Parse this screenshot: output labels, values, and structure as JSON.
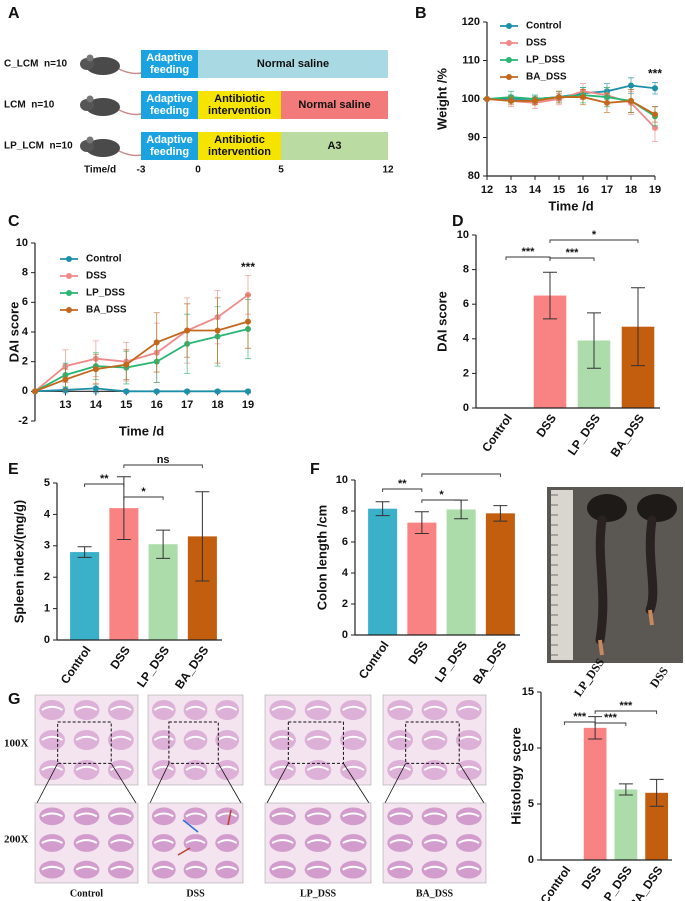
{
  "panel_labels": [
    "A",
    "B",
    "C",
    "D",
    "E",
    "F",
    "G"
  ],
  "timeline": {
    "axis_label": "Time/d",
    "ticks": [
      "-3",
      "0",
      "5",
      "12"
    ],
    "rows": [
      {
        "label": "C_LCM  n=10",
        "segments": [
          {
            "text": "Adaptive feeding",
            "color": "#1aa3e0"
          },
          {
            "text": "Normal saline",
            "color": "#a9d9e2"
          }
        ]
      },
      {
        "label": "LCM  n=10",
        "segments": [
          {
            "text": "Adaptive feeding",
            "color": "#1aa3e0"
          },
          {
            "text": "Antibiotic intervention",
            "color": "#f5e400"
          },
          {
            "text": "Normal saline",
            "color": "#f27a7a"
          }
        ]
      },
      {
        "label": "LP_LCM  n=10",
        "segments": [
          {
            "text": "Adaptive feeding",
            "color": "#1aa3e0"
          },
          {
            "text": "Antibiotic intervention",
            "color": "#f5e400"
          },
          {
            "text": "A3",
            "color": "#badca2"
          }
        ]
      }
    ]
  },
  "chart_data": [
    {
      "type": "line",
      "y_label": "Weight /%",
      "x_label": "Time /d",
      "x": [
        12,
        13,
        14,
        15,
        16,
        17,
        18,
        19
      ],
      "xlim": [
        12,
        19
      ],
      "xticks": [
        12,
        13,
        14,
        15,
        16,
        17,
        18,
        19
      ],
      "ylim": [
        80,
        120
      ],
      "yticks": [
        80,
        90,
        100,
        110,
        120
      ],
      "annotation": "***",
      "series": [
        {
          "name": "Control",
          "color": "#1e8fa8",
          "values": [
            100,
            100,
            100,
            100.5,
            101.5,
            102,
            103.5,
            102.8
          ],
          "errors": [
            0,
            1,
            1,
            1,
            1.5,
            2,
            2,
            1.5
          ]
        },
        {
          "name": "DSS",
          "color": "#f08a8a",
          "values": [
            100,
            99.5,
            99,
            100,
            102,
            101,
            99,
            92.5
          ],
          "errors": [
            0,
            1.5,
            1.5,
            1.5,
            2,
            2,
            3,
            3.5
          ]
        },
        {
          "name": "LP_DSS",
          "color": "#2ab573",
          "values": [
            100,
            100.5,
            100,
            100.5,
            101,
            100.5,
            99.5,
            95.5
          ],
          "errors": [
            0,
            1.5,
            1,
            1.5,
            2,
            2.5,
            3,
            2.5
          ]
        },
        {
          "name": "BA_DSS",
          "color": "#c2681d",
          "values": [
            100,
            99.5,
            99.5,
            100.5,
            100.5,
            99,
            99.5,
            96
          ],
          "errors": [
            0,
            1,
            1,
            1.5,
            2,
            2.5,
            3,
            2
          ]
        }
      ]
    },
    {
      "type": "line",
      "y_label": "DAI score",
      "x_label": "Time /d",
      "x": [
        12,
        13,
        14,
        15,
        16,
        17,
        18,
        19
      ],
      "xlim": [
        12,
        19
      ],
      "xticks": [
        13,
        14,
        15,
        16,
        17,
        18,
        19
      ],
      "ylim": [
        -2,
        10
      ],
      "yticks": [
        -2,
        0,
        2,
        4,
        6,
        8,
        10
      ],
      "annotation": "***",
      "series": [
        {
          "name": "Control",
          "color": "#1e8fa8",
          "values": [
            0,
            0.1,
            0.2,
            0,
            0,
            0,
            0,
            0
          ],
          "errors": [
            0,
            0.2,
            0.3,
            0.1,
            0.1,
            0.1,
            0.1,
            0.1
          ]
        },
        {
          "name": "DSS",
          "color": "#f08a8a",
          "values": [
            0,
            1.7,
            2.2,
            2.0,
            2.6,
            4.1,
            5.0,
            6.5
          ],
          "errors": [
            0,
            1.1,
            1.2,
            1.3,
            2.0,
            2.2,
            1.8,
            1.3
          ]
        },
        {
          "name": "LP_DSS",
          "color": "#2ab573",
          "values": [
            0,
            1.1,
            1.7,
            1.6,
            2.0,
            3.2,
            3.7,
            4.2
          ],
          "errors": [
            0,
            0.8,
            0.9,
            1.1,
            1.4,
            2.0,
            2.0,
            2.0
          ]
        },
        {
          "name": "BA_DSS",
          "color": "#c2681d",
          "values": [
            0,
            0.8,
            1.5,
            1.8,
            3.3,
            4.1,
            4.1,
            4.7
          ],
          "errors": [
            0,
            0.7,
            1.0,
            1.0,
            2.0,
            1.8,
            2.2,
            1.8
          ]
        }
      ]
    },
    {
      "type": "bar",
      "y_label": "DAI score",
      "categories": [
        "Control",
        "DSS",
        "LP_DSS",
        "BA_DSS"
      ],
      "values": [
        0,
        6.5,
        3.9,
        4.7
      ],
      "errors": [
        0,
        1.35,
        1.6,
        2.25
      ],
      "colors": [
        "#3ab0c9",
        "#f98282",
        "#abdcaa",
        "#c35e0e"
      ],
      "ylim": [
        0,
        10
      ],
      "yticks": [
        0,
        2,
        4,
        6,
        8,
        10
      ],
      "comparisons": [
        {
          "from": 0,
          "to": 1,
          "label": "***"
        },
        {
          "from": 1,
          "to": 2,
          "label": "***"
        },
        {
          "from": 1,
          "to": 3,
          "label": "*"
        }
      ]
    },
    {
      "type": "bar",
      "y_label": "Spleen index/(mg/g)",
      "categories": [
        "Control",
        "DSS",
        "LP_DSS",
        "BA_DSS"
      ],
      "values": [
        2.8,
        4.2,
        3.05,
        3.3
      ],
      "errors": [
        0.17,
        1.0,
        0.45,
        1.42
      ],
      "colors": [
        "#3ab0c9",
        "#f98282",
        "#abdcaa",
        "#c35e0e"
      ],
      "ylim": [
        0,
        5
      ],
      "yticks": [
        0,
        1,
        2,
        3,
        4,
        5
      ],
      "comparisons": [
        {
          "from": 0,
          "to": 1,
          "label": "**"
        },
        {
          "from": 1,
          "to": 2,
          "label": "*"
        },
        {
          "from": 1,
          "to": 3,
          "label": "ns"
        }
      ]
    },
    {
      "type": "bar",
      "y_label": "Colon length /cm",
      "categories": [
        "Control",
        "DSS",
        "LP_DSS",
        "BA_DSS"
      ],
      "values": [
        8.15,
        7.25,
        8.1,
        7.85
      ],
      "errors": [
        0.45,
        0.7,
        0.6,
        0.5
      ],
      "colors": [
        "#3ab0c9",
        "#f98282",
        "#abdcaa",
        "#c35e0e"
      ],
      "ylim": [
        0,
        10
      ],
      "yticks": [
        0,
        2,
        4,
        6,
        8,
        10
      ],
      "comparisons": [
        {
          "from": 0,
          "to": 1,
          "label": "**"
        },
        {
          "from": 1,
          "to": 2,
          "label": "*"
        },
        {
          "from": 1,
          "to": 3
        }
      ]
    },
    {
      "type": "bar",
      "y_label": "Histology score",
      "categories": [
        "Control",
        "DSS",
        "LP_DSS",
        "BA_DSS"
      ],
      "values": [
        0,
        11.8,
        6.3,
        6.0
      ],
      "errors": [
        0,
        1.0,
        0.5,
        1.2
      ],
      "colors": [
        "#3ab0c9",
        "#f98282",
        "#abdcaa",
        "#c35e0e"
      ],
      "ylim": [
        0,
        15
      ],
      "yticks": [
        0,
        5,
        10,
        15
      ],
      "comparisons": [
        {
          "from": 0,
          "to": 1,
          "label": "***"
        },
        {
          "from": 1,
          "to": 2,
          "label": "***"
        },
        {
          "from": 1,
          "to": 3,
          "label": "***"
        }
      ]
    }
  ],
  "photo": {
    "labels": [
      "LP_DSS",
      "DSS"
    ]
  },
  "histology": {
    "row_labels": [
      "100X",
      "200X"
    ],
    "columns": [
      "Control",
      "DSS",
      "LP_DSS",
      "BA_DSS"
    ]
  }
}
